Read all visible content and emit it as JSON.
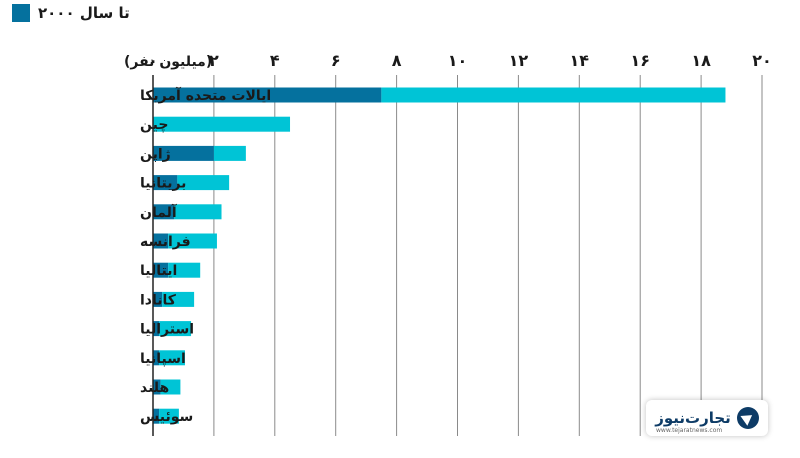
{
  "legend": {
    "label": "تا سال ۲۰۰۰",
    "color": "#05719e"
  },
  "unit_label": "(میلیون نفر)",
  "watermark": {
    "brand": "تجارت‌نیوز",
    "site": "www.tejaratnews.com"
  },
  "colors": {
    "before_2000": "#05719e",
    "total": "#00c4d6",
    "grid": "#8a8a8a",
    "axis": "#222222"
  },
  "chart_data": {
    "type": "bar",
    "orientation": "horizontal",
    "stacked": true,
    "xlim": [
      0,
      20
    ],
    "ticks": [
      0,
      2,
      4,
      6,
      8,
      10,
      12,
      14,
      16,
      18,
      20
    ],
    "tick_labels": [
      "۰",
      "۲",
      "۴",
      "۶",
      "۸",
      "۱۰",
      "۱۲",
      "۱۴",
      "۱۶",
      "۱۸",
      "۲۰"
    ],
    "categories": [
      "ایالات متحده آمریکا",
      "چین",
      "ژاپن",
      "بریتانیا",
      "آلمان",
      "فرانسه",
      "ایتالیا",
      "کانادا",
      "استرالیا",
      "اسپانیا",
      "هلند",
      "سوئیس"
    ],
    "series": [
      {
        "name": "تا سال ۲۰۰۰",
        "values": [
          7.5,
          0,
          2.0,
          0.8,
          0.7,
          0.5,
          0.5,
          0.3,
          0.2,
          0.2,
          0.25,
          0.2
        ]
      },
      {
        "values": [
          11.3,
          4.5,
          1.05,
          1.7,
          1.55,
          1.6,
          1.05,
          1.05,
          1.05,
          0.85,
          0.65,
          0.65
        ]
      }
    ],
    "grid": true
  }
}
